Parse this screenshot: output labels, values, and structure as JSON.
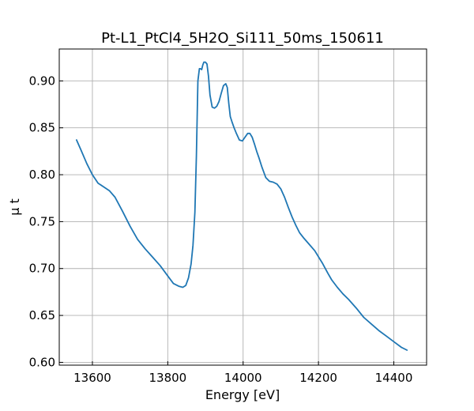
{
  "chart_data": {
    "type": "line",
    "title": "Pt-L1_PtCl4_5H2O_Si111_50ms_150611",
    "xlabel": "Energy [eV]",
    "ylabel": "μ t",
    "xlim": [
      13512,
      14487
    ],
    "ylim": [
      0.597,
      0.934
    ],
    "xticks": [
      13600,
      13800,
      14000,
      14200,
      14400
    ],
    "yticks": [
      0.6,
      0.65,
      0.7,
      0.75,
      0.8,
      0.85,
      0.9
    ],
    "xtick_labels": [
      "13600",
      "13800",
      "14000",
      "14200",
      "14400"
    ],
    "ytick_labels": [
      "0.60",
      "0.65",
      "0.70",
      "0.75",
      "0.80",
      "0.85",
      "0.90"
    ],
    "grid": true,
    "color": "#1f77b4",
    "series": [
      {
        "x": [
          13558,
          13570,
          13585,
          13600,
          13615,
          13630,
          13645,
          13660,
          13680,
          13700,
          13720,
          13740,
          13760,
          13780,
          13800,
          13815,
          13830,
          13840,
          13848,
          13855,
          13862,
          13867,
          13872,
          13876,
          13880,
          13884,
          13887,
          13890,
          13893,
          13896,
          13900,
          13904,
          13908,
          13912,
          13918,
          13924,
          13930,
          13936,
          13942,
          13948,
          13954,
          13958,
          13962,
          13966,
          13970,
          13976,
          13982,
          13990,
          13998,
          14005,
          14012,
          14018,
          14024,
          14030,
          14036,
          14042,
          14050,
          14060,
          14070,
          14080,
          14090,
          14100,
          14110,
          14120,
          14130,
          14140,
          14150,
          14160,
          14175,
          14190,
          14210,
          14225,
          14235,
          14250,
          14265,
          14280,
          14300,
          14320,
          14340,
          14360,
          14380,
          14400,
          14420,
          14435
        ],
        "y": [
          0.837,
          0.826,
          0.812,
          0.8,
          0.791,
          0.787,
          0.783,
          0.776,
          0.761,
          0.745,
          0.731,
          0.721,
          0.712,
          0.703,
          0.692,
          0.684,
          0.681,
          0.68,
          0.682,
          0.69,
          0.705,
          0.725,
          0.76,
          0.82,
          0.9,
          0.913,
          0.913,
          0.912,
          0.917,
          0.92,
          0.92,
          0.918,
          0.905,
          0.885,
          0.872,
          0.871,
          0.873,
          0.878,
          0.887,
          0.895,
          0.897,
          0.893,
          0.876,
          0.862,
          0.857,
          0.85,
          0.844,
          0.837,
          0.836,
          0.84,
          0.844,
          0.844,
          0.84,
          0.833,
          0.825,
          0.818,
          0.808,
          0.797,
          0.793,
          0.792,
          0.79,
          0.785,
          0.776,
          0.765,
          0.755,
          0.746,
          0.738,
          0.733,
          0.726,
          0.719,
          0.706,
          0.695,
          0.688,
          0.68,
          0.673,
          0.667,
          0.658,
          0.648,
          0.641,
          0.634,
          0.628,
          0.622,
          0.616,
          0.613
        ]
      }
    ]
  }
}
